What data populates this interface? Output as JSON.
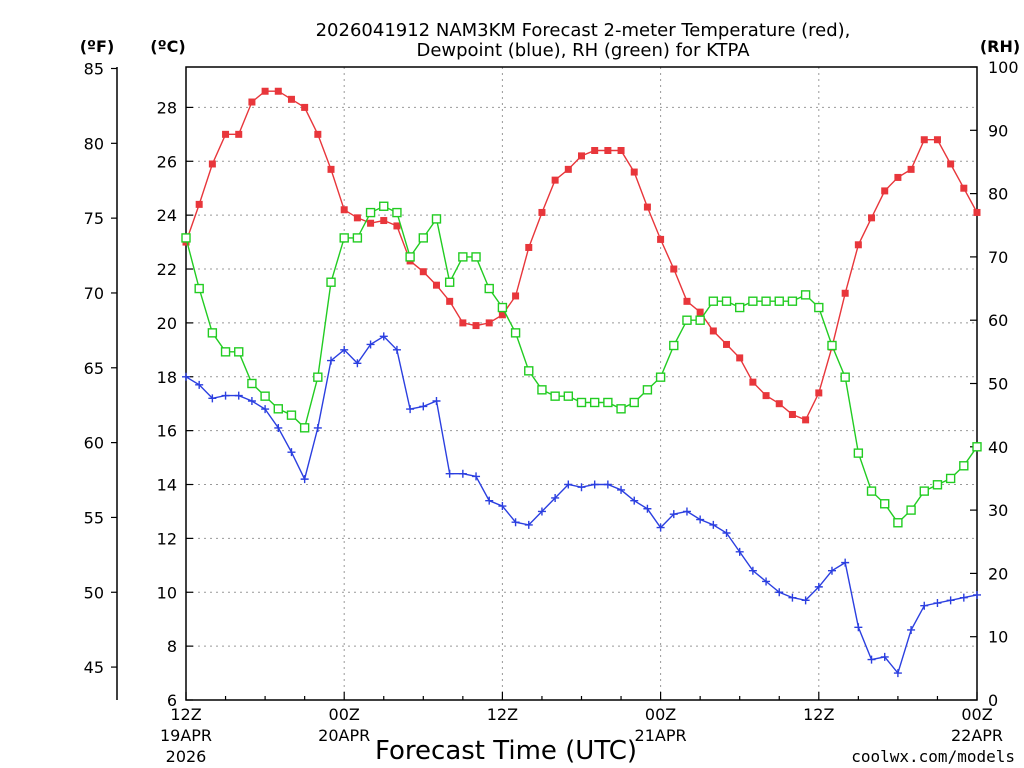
{
  "title": {
    "line1": "2026041912 NAM3KM Forecast 2-meter Temperature (red),",
    "line2": "Dewpoint (blue), RH (green) for KTPA"
  },
  "axes": {
    "f_label": "(ºF)",
    "c_label": "(ºC)",
    "rh_label": "(RH)",
    "xlabel": "Forecast Time (UTC)",
    "f_ticks": [
      "85",
      "80",
      "75",
      "70",
      "65",
      "60",
      "55",
      "50",
      "45"
    ],
    "c_ticks": [
      "28",
      "26",
      "24",
      "22",
      "20",
      "18",
      "16",
      "14",
      "12",
      "10",
      "8",
      "6"
    ],
    "rh_ticks": [
      "100",
      "90",
      "80",
      "70",
      "60",
      "50",
      "40",
      "30",
      "20",
      "10",
      "0"
    ],
    "x_ticks": [
      {
        "l1": "12Z",
        "l2": "19APR",
        "l3": "2026"
      },
      {
        "l1": "00Z",
        "l2": "20APR",
        "l3": ""
      },
      {
        "l1": "12Z",
        "l2": "",
        "l3": ""
      },
      {
        "l1": "00Z",
        "l2": "21APR",
        "l3": ""
      },
      {
        "l1": "12Z",
        "l2": "",
        "l3": ""
      },
      {
        "l1": "00Z",
        "l2": "22APR",
        "l3": ""
      }
    ]
  },
  "credit": "coolwx.com/models",
  "colors": {
    "temp": "#e8363b",
    "dewpoint": "#2b3fe0",
    "rh": "#22cc22",
    "grid": "#999999"
  },
  "chart_data": {
    "type": "line",
    "title": "2026041912 NAM3KM Forecast 2-meter Temperature (red), Dewpoint (blue), RH (green) for KTPA",
    "xlabel": "Forecast Time (UTC)",
    "x_unit": "forecast hour (0 = 12Z 19APR 2026)",
    "xlim": [
      0,
      60
    ],
    "ylim_c": [
      6,
      29.5
    ],
    "ylim_rh": [
      0,
      100
    ],
    "x": [
      0,
      1,
      2,
      3,
      4,
      5,
      6,
      7,
      8,
      9,
      10,
      11,
      12,
      13,
      14,
      15,
      16,
      17,
      18,
      19,
      20,
      21,
      22,
      23,
      24,
      25,
      26,
      27,
      28,
      29,
      30,
      31,
      32,
      33,
      34,
      35,
      36,
      37,
      38,
      39,
      40,
      41,
      42,
      43,
      44,
      45,
      46,
      47,
      48,
      49,
      50,
      51,
      52,
      53,
      54,
      55,
      56,
      57,
      58,
      59,
      60
    ],
    "series": [
      {
        "name": "Temperature (°C)",
        "axis": "celsius",
        "marker": "filled-square",
        "values": [
          23.0,
          24.4,
          25.9,
          27.0,
          27.0,
          28.2,
          28.6,
          28.6,
          28.3,
          28.0,
          27.0,
          25.7,
          24.2,
          23.9,
          23.7,
          23.8,
          23.6,
          22.3,
          21.9,
          21.4,
          20.8,
          20.0,
          19.9,
          20.0,
          20.3,
          21.0,
          22.8,
          24.1,
          25.3,
          25.7,
          26.2,
          26.4,
          26.4,
          26.4,
          25.6,
          24.3,
          23.1,
          22.0,
          20.8,
          20.4,
          19.7,
          19.2,
          18.7,
          17.8,
          17.3,
          17.0,
          16.6,
          16.4,
          17.4,
          19.1,
          21.1,
          22.9,
          23.9,
          24.9,
          25.4,
          25.7,
          26.8,
          26.8,
          25.9,
          25.0,
          24.1
        ]
      },
      {
        "name": "Dewpoint (°C)",
        "axis": "celsius",
        "marker": "plus",
        "values": [
          18.0,
          17.7,
          17.2,
          17.3,
          17.3,
          17.1,
          16.8,
          16.1,
          15.2,
          14.2,
          16.1,
          18.6,
          19.0,
          18.5,
          19.2,
          19.5,
          19.0,
          16.8,
          16.9,
          17.1,
          14.4,
          14.4,
          14.3,
          13.4,
          13.2,
          12.6,
          12.5,
          13.0,
          13.5,
          14.0,
          13.9,
          14.0,
          14.0,
          13.8,
          13.4,
          13.1,
          12.4,
          12.9,
          13.0,
          12.7,
          12.5,
          12.2,
          11.5,
          10.8,
          10.4,
          10.0,
          9.8,
          9.7,
          10.2,
          10.8,
          11.1,
          8.7,
          7.5,
          7.6,
          7.0,
          8.6,
          9.5,
          9.6,
          9.7,
          9.8,
          9.9
        ]
      },
      {
        "name": "Relative Humidity (%)",
        "axis": "rh",
        "marker": "open-square",
        "values": [
          73,
          65,
          58,
          55,
          55,
          50,
          48,
          46,
          45,
          43,
          51,
          66,
          73,
          73,
          77,
          78,
          77,
          70,
          73,
          76,
          66,
          70,
          70,
          65,
          62,
          58,
          52,
          49,
          48,
          48,
          47,
          47,
          47,
          46,
          47,
          49,
          51,
          56,
          60,
          60,
          63,
          63,
          62,
          63,
          63,
          63,
          63,
          64,
          62,
          56,
          51,
          39,
          33,
          31,
          28,
          30,
          33,
          34,
          35,
          37,
          40
        ]
      }
    ]
  }
}
